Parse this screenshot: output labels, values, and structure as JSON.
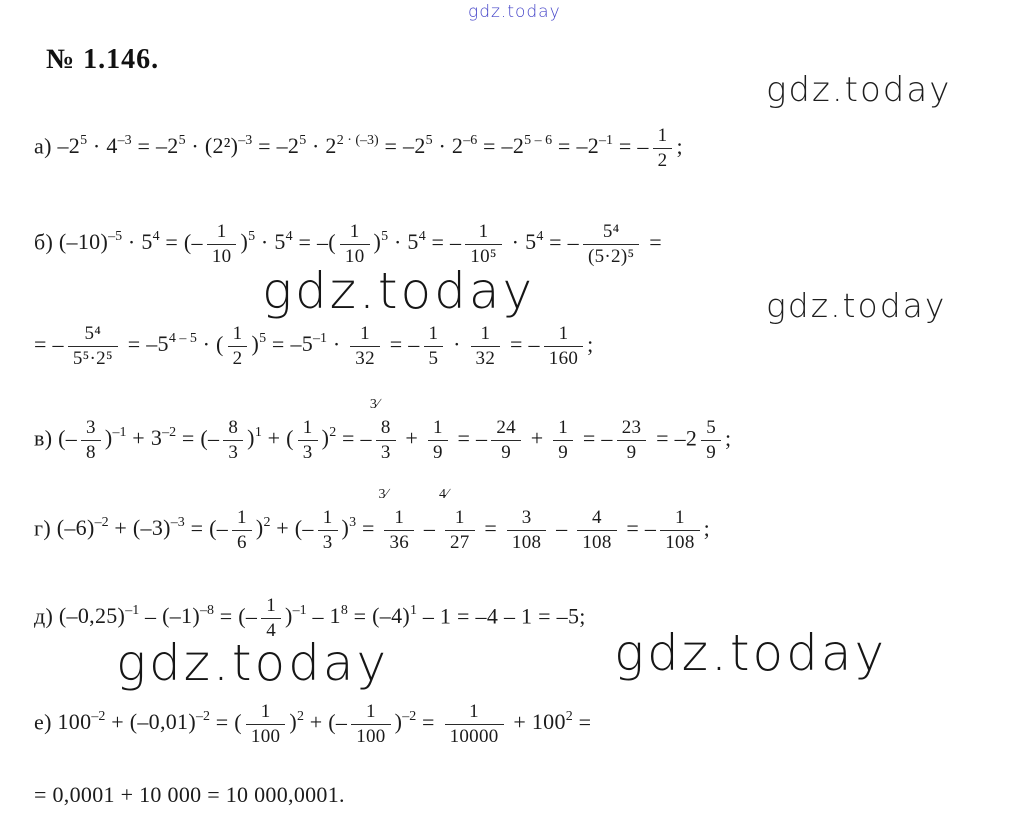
{
  "header": {
    "problem_number": "№ 1.146."
  },
  "watermarks": {
    "top": {
      "text": "gdz.today",
      "color": "#4444c8"
    },
    "right_top": {
      "text": "gdz.today",
      "color": "#1e1e1e"
    },
    "center_mid": {
      "text": "gdz.today",
      "color": "#161616"
    },
    "right_mid": {
      "text": "gdz.today",
      "color": "#1e1e1e"
    },
    "left_bottom": {
      "text": "gdz.today",
      "color": "#161616"
    },
    "right_bottom": {
      "text": "gdz.today",
      "color": "#161616"
    }
  },
  "solution": {
    "lines": [
      {
        "id": "a",
        "tokens": [
          {
            "t": "x",
            "v": "а) "
          },
          {
            "t": "p",
            "b": "–2",
            "s": "5"
          },
          {
            "t": "x",
            "v": " · "
          },
          {
            "t": "p",
            "b": "4",
            "s": "–3"
          },
          {
            "t": "x",
            "v": " = "
          },
          {
            "t": "p",
            "b": "–2",
            "s": "5"
          },
          {
            "t": "x",
            "v": " · "
          },
          {
            "t": "p",
            "b": "(2²)",
            "s": "–3"
          },
          {
            "t": "x",
            "v": " = "
          },
          {
            "t": "p",
            "b": "–2",
            "s": "5"
          },
          {
            "t": "x",
            "v": " · "
          },
          {
            "t": "p",
            "b": "2",
            "s": "2 · (–3)"
          },
          {
            "t": "x",
            "v": " = "
          },
          {
            "t": "p",
            "b": "–2",
            "s": "5"
          },
          {
            "t": "x",
            "v": " · "
          },
          {
            "t": "p",
            "b": "2",
            "s": "–6"
          },
          {
            "t": "x",
            "v": " = "
          },
          {
            "t": "p",
            "b": "–2",
            "s": "5 – 6"
          },
          {
            "t": "x",
            "v": " = "
          },
          {
            "t": "p",
            "b": "–2",
            "s": "–1"
          },
          {
            "t": "x",
            "v": " = –"
          },
          {
            "t": "f",
            "n": "1",
            "d": "2"
          },
          {
            "t": "x",
            "v": ";"
          }
        ]
      },
      {
        "id": "b",
        "tokens": [
          {
            "t": "x",
            "v": "б) "
          },
          {
            "t": "p",
            "b": "(–10)",
            "s": "–5"
          },
          {
            "t": "x",
            "v": " · "
          },
          {
            "t": "p",
            "b": "5",
            "s": "4"
          },
          {
            "t": "x",
            "v": " = (–"
          },
          {
            "t": "f",
            "n": "1",
            "d": "10"
          },
          {
            "t": "p",
            "b": ")",
            "s": "5"
          },
          {
            "t": "x",
            "v": " · "
          },
          {
            "t": "p",
            "b": "5",
            "s": "4"
          },
          {
            "t": "x",
            "v": " = –("
          },
          {
            "t": "f",
            "n": "1",
            "d": "10"
          },
          {
            "t": "p",
            "b": ")",
            "s": "5"
          },
          {
            "t": "x",
            "v": " · "
          },
          {
            "t": "p",
            "b": "5",
            "s": "4"
          },
          {
            "t": "x",
            "v": " = –"
          },
          {
            "t": "f",
            "n": "1",
            "d": "10⁵"
          },
          {
            "t": "x",
            "v": " · "
          },
          {
            "t": "p",
            "b": "5",
            "s": "4"
          },
          {
            "t": "x",
            "v": " = –"
          },
          {
            "t": "f",
            "n": "5⁴",
            "d": "(5·2)⁵"
          },
          {
            "t": "x",
            "v": " ="
          }
        ]
      },
      {
        "id": "b2",
        "tokens": [
          {
            "t": "x",
            "v": "= –"
          },
          {
            "t": "f",
            "n": "5⁴",
            "d": "5⁵·2⁵"
          },
          {
            "t": "x",
            "v": " = "
          },
          {
            "t": "p",
            "b": "–5",
            "s": "4 – 5"
          },
          {
            "t": "x",
            "v": " · ("
          },
          {
            "t": "f",
            "n": "1",
            "d": "2"
          },
          {
            "t": "p",
            "b": ")",
            "s": "5"
          },
          {
            "t": "x",
            "v": " = "
          },
          {
            "t": "p",
            "b": "–5",
            "s": "–1"
          },
          {
            "t": "x",
            "v": " · "
          },
          {
            "t": "f",
            "n": "1",
            "d": "32"
          },
          {
            "t": "x",
            "v": " = –"
          },
          {
            "t": "f",
            "n": "1",
            "d": "5"
          },
          {
            "t": "x",
            "v": " · "
          },
          {
            "t": "f",
            "n": "1",
            "d": "32"
          },
          {
            "t": "x",
            "v": " = –"
          },
          {
            "t": "f",
            "n": "1",
            "d": "160"
          },
          {
            "t": "x",
            "v": ";"
          }
        ]
      },
      {
        "id": "v",
        "tokens": [
          {
            "t": "x",
            "v": "в) (–"
          },
          {
            "t": "f",
            "n": "3",
            "d": "8"
          },
          {
            "t": "p",
            "b": ")",
            "s": "–1"
          },
          {
            "t": "x",
            "v": " + "
          },
          {
            "t": "p",
            "b": "3",
            "s": "–2"
          },
          {
            "t": "x",
            "v": " = (–"
          },
          {
            "t": "f",
            "n": "8",
            "d": "3"
          },
          {
            "t": "p",
            "b": ")",
            "s": "1"
          },
          {
            "t": "x",
            "v": " + ("
          },
          {
            "t": "f",
            "n": "1",
            "d": "3"
          },
          {
            "t": "p",
            "b": ")",
            "s": "2"
          },
          {
            "t": "x",
            "v": " = –"
          },
          {
            "t": "f",
            "n": "8",
            "d": "3",
            "a": "3"
          },
          {
            "t": "x",
            "v": " + "
          },
          {
            "t": "f",
            "n": "1",
            "d": "9"
          },
          {
            "t": "x",
            "v": " = –"
          },
          {
            "t": "f",
            "n": "24",
            "d": "9"
          },
          {
            "t": "x",
            "v": " + "
          },
          {
            "t": "f",
            "n": "1",
            "d": "9"
          },
          {
            "t": "x",
            "v": " = –"
          },
          {
            "t": "f",
            "n": "23",
            "d": "9"
          },
          {
            "t": "x",
            "v": " = –2"
          },
          {
            "t": "f",
            "n": "5",
            "d": "9"
          },
          {
            "t": "x",
            "v": ";"
          }
        ]
      },
      {
        "id": "g",
        "tokens": [
          {
            "t": "x",
            "v": "г) "
          },
          {
            "t": "p",
            "b": "(–6)",
            "s": "–2"
          },
          {
            "t": "x",
            "v": " + "
          },
          {
            "t": "p",
            "b": "(–3)",
            "s": "–3"
          },
          {
            "t": "x",
            "v": " = (–"
          },
          {
            "t": "f",
            "n": "1",
            "d": "6"
          },
          {
            "t": "p",
            "b": ")",
            "s": "2"
          },
          {
            "t": "x",
            "v": " + (–"
          },
          {
            "t": "f",
            "n": "1",
            "d": "3"
          },
          {
            "t": "p",
            "b": ")",
            "s": "3"
          },
          {
            "t": "x",
            "v": " = "
          },
          {
            "t": "f",
            "n": "1",
            "d": "36",
            "a": "3"
          },
          {
            "t": "x",
            "v": " – "
          },
          {
            "t": "f",
            "n": "1",
            "d": "27",
            "a": "4"
          },
          {
            "t": "x",
            "v": " = "
          },
          {
            "t": "f",
            "n": "3",
            "d": "108"
          },
          {
            "t": "x",
            "v": " – "
          },
          {
            "t": "f",
            "n": "4",
            "d": "108"
          },
          {
            "t": "x",
            "v": " = –"
          },
          {
            "t": "f",
            "n": "1",
            "d": "108"
          },
          {
            "t": "x",
            "v": ";"
          }
        ]
      },
      {
        "id": "d",
        "tokens": [
          {
            "t": "x",
            "v": "д) "
          },
          {
            "t": "p",
            "b": "(–0,25)",
            "s": "–1"
          },
          {
            "t": "x",
            "v": " – "
          },
          {
            "t": "p",
            "b": "(–1)",
            "s": "–8"
          },
          {
            "t": "x",
            "v": " = (–"
          },
          {
            "t": "f",
            "n": "1",
            "d": "4"
          },
          {
            "t": "p",
            "b": ")",
            "s": "–1"
          },
          {
            "t": "x",
            "v": " – "
          },
          {
            "t": "p",
            "b": "1",
            "s": "8"
          },
          {
            "t": "x",
            "v": " = "
          },
          {
            "t": "p",
            "b": "(–4)",
            "s": "1"
          },
          {
            "t": "x",
            "v": " – 1 = –4 – 1 = –5;"
          }
        ]
      },
      {
        "id": "e",
        "tokens": [
          {
            "t": "x",
            "v": "е) "
          },
          {
            "t": "p",
            "b": "100",
            "s": "–2"
          },
          {
            "t": "x",
            "v": " + "
          },
          {
            "t": "p",
            "b": "(–0,01)",
            "s": "–2"
          },
          {
            "t": "x",
            "v": " = ("
          },
          {
            "t": "f",
            "n": "1",
            "d": "100"
          },
          {
            "t": "p",
            "b": ")",
            "s": "2"
          },
          {
            "t": "x",
            "v": " + (–"
          },
          {
            "t": "f",
            "n": "1",
            "d": "100"
          },
          {
            "t": "p",
            "b": ")",
            "s": "–2"
          },
          {
            "t": "x",
            "v": " = "
          },
          {
            "t": "f",
            "n": "1",
            "d": "10000"
          },
          {
            "t": "x",
            "v": " + "
          },
          {
            "t": "p",
            "b": "100",
            "s": "2"
          },
          {
            "t": "x",
            "v": " ="
          }
        ]
      },
      {
        "id": "e2",
        "tokens": [
          {
            "t": "x",
            "v": "= 0,0001 + 10 000 = 10 000,0001."
          }
        ]
      }
    ]
  }
}
